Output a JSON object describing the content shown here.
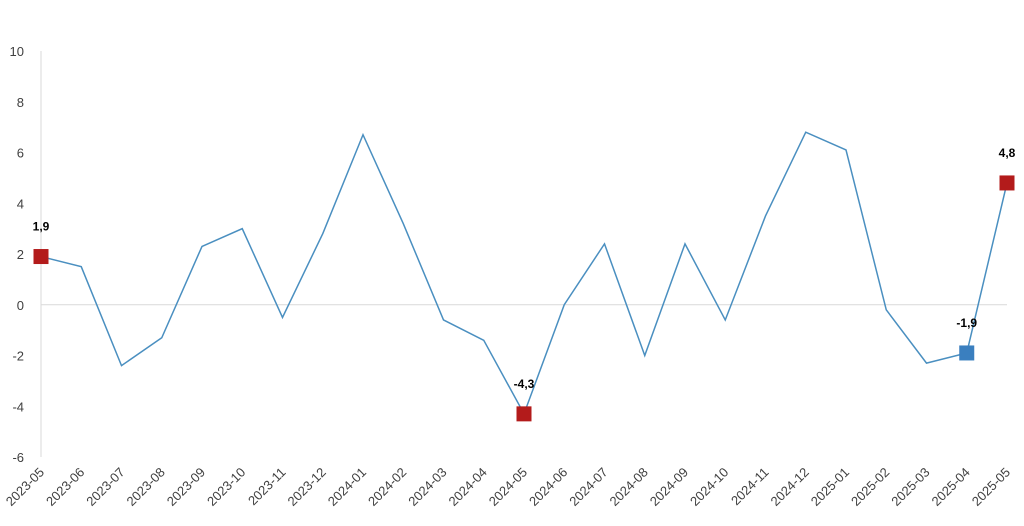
{
  "chart_data": {
    "type": "line",
    "title": "",
    "xlabel": "",
    "ylabel": "",
    "ylim": [
      -6,
      10
    ],
    "yticks": [
      10,
      8,
      6,
      4,
      2,
      0,
      -2,
      -4,
      -6
    ],
    "grid": false,
    "legend": "none",
    "categories": [
      "2023-05",
      "2023-06",
      "2023-07",
      "2023-08",
      "2023-09",
      "2023-10",
      "2023-11",
      "2023-12",
      "2024-01",
      "2024-02",
      "2024-03",
      "2024-04",
      "2024-05",
      "2024-06",
      "2024-07",
      "2024-08",
      "2024-09",
      "2024-10",
      "2024-11",
      "2024-12",
      "2025-01",
      "2025-02",
      "2025-03",
      "2025-04",
      "2025-05"
    ],
    "series": [
      {
        "values": [
          1.9,
          1.5,
          -2.4,
          -1.3,
          2.3,
          3.0,
          -0.5,
          2.8,
          6.7,
          3.2,
          -0.6,
          -1.4,
          -4.3,
          0.0,
          2.4,
          -2.0,
          2.4,
          -0.6,
          3.5,
          6.8,
          6.1,
          -0.2,
          -2.3,
          -1.9,
          4.8
        ],
        "color": "#4a8fc0"
      }
    ],
    "markers": [
      {
        "index": 0,
        "label": "1,9",
        "color": "#b31b1b"
      },
      {
        "index": 12,
        "label": "-4,3",
        "color": "#b31b1b"
      },
      {
        "index": 23,
        "label": "-1,9",
        "color": "#3a7fbf"
      },
      {
        "index": 24,
        "label": "4,8",
        "color": "#b31b1b"
      }
    ],
    "colors": {
      "axis": "#d9d9d9",
      "line": "#4a8fc0",
      "tick_text": "#404040"
    }
  }
}
